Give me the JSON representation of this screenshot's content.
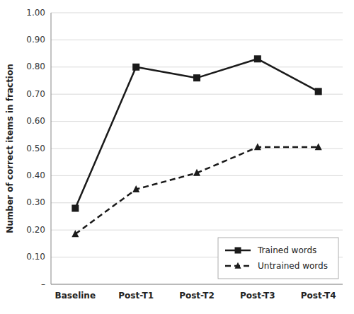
{
  "chart_data": {
    "type": "line",
    "y_label": "Number of correct items in fraction",
    "categories": [
      "Baseline",
      "Post-T1",
      "Post-T2",
      "Post-T3",
      "Post-T4"
    ],
    "series": [
      {
        "name": "Trained words",
        "color": "#1a1a1a",
        "marker": "square",
        "line_style": "solid",
        "values": [
          0.28,
          0.8,
          0.76,
          0.83,
          0.71
        ]
      },
      {
        "name": "Untrained words",
        "color": "#1a1a1a",
        "marker": "triangle",
        "line_style": "dashed",
        "values": [
          0.185,
          0.35,
          0.41,
          0.505,
          0.505
        ]
      }
    ],
    "ylim": [
      0,
      1.0
    ],
    "yticks": [
      {
        "value": 0,
        "label": "–"
      },
      {
        "value": 0.1,
        "label": "0.10"
      },
      {
        "value": 0.2,
        "label": "0.20"
      },
      {
        "value": 0.3,
        "label": "0.30"
      },
      {
        "value": 0.4,
        "label": "0.40"
      },
      {
        "value": 0.5,
        "label": "0.50"
      },
      {
        "value": 0.6,
        "label": "0.60"
      },
      {
        "value": 0.7,
        "label": "0.70"
      },
      {
        "value": 0.8,
        "label": "0.80"
      },
      {
        "value": 0.9,
        "label": "0.90"
      },
      {
        "value": 1.0,
        "label": "1.00"
      }
    ],
    "grid": true,
    "legend": "lower right"
  }
}
